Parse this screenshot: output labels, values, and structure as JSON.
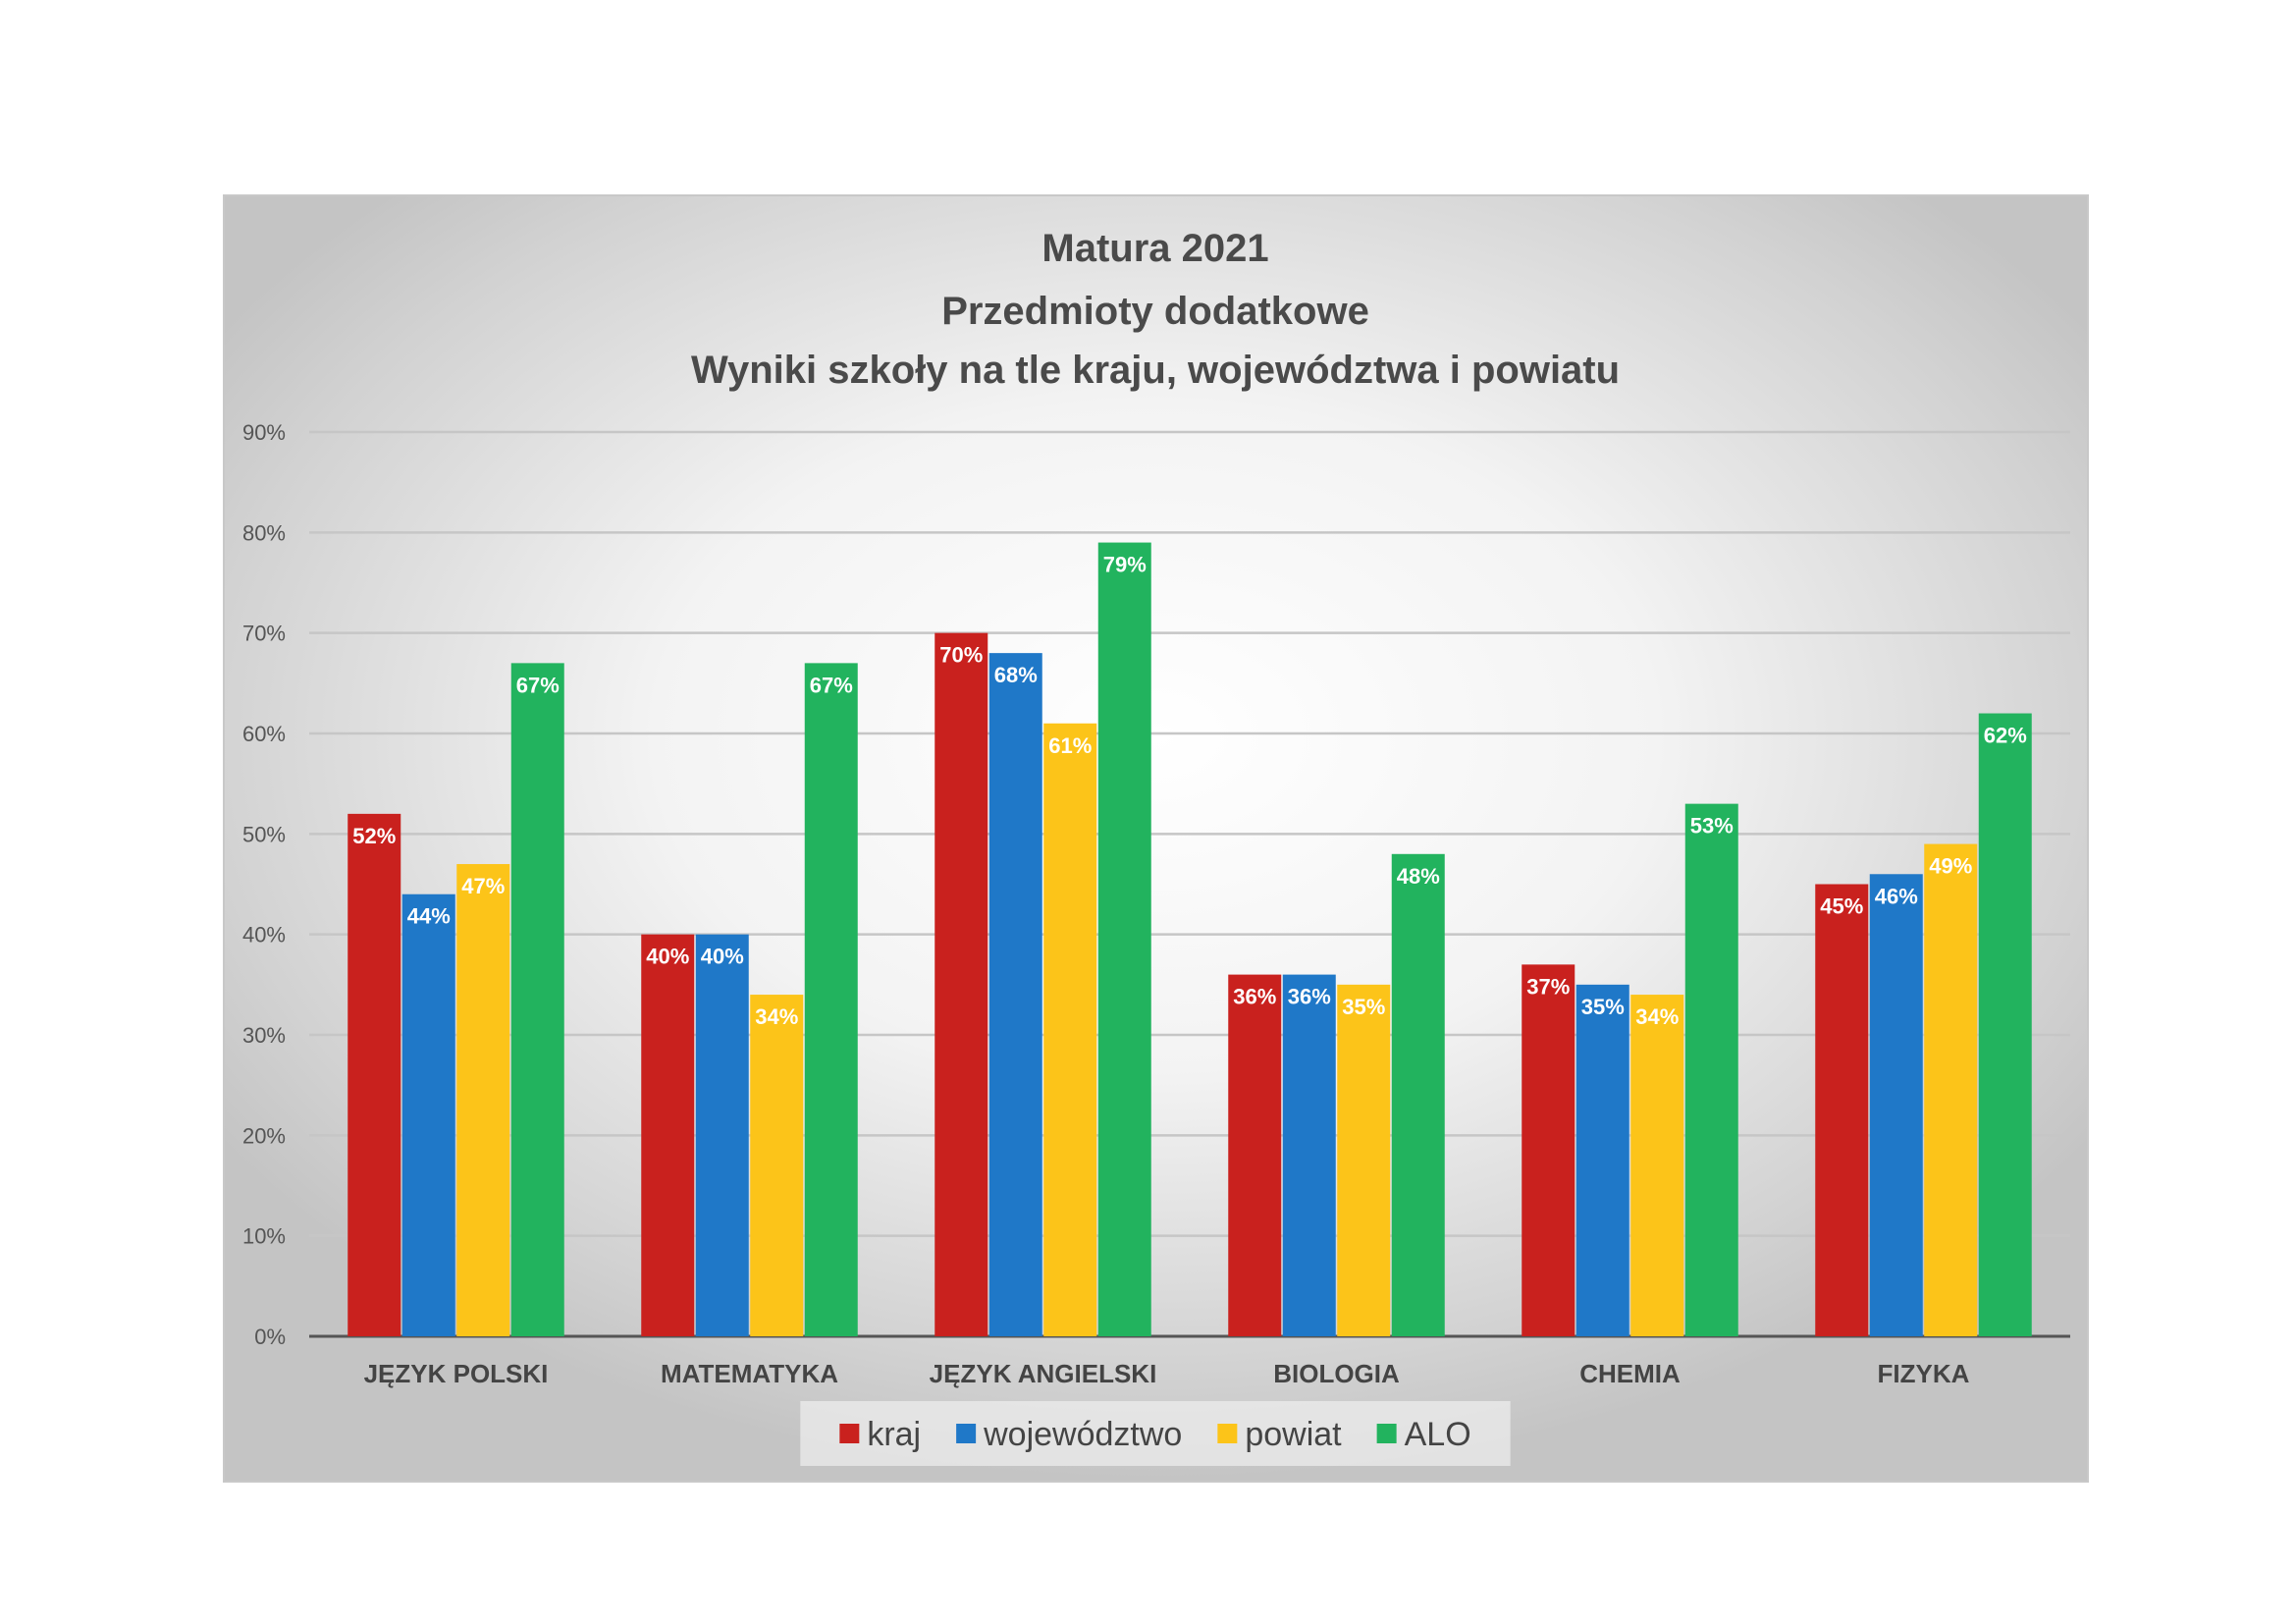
{
  "chart_data": {
    "type": "bar",
    "title": [
      "Matura 2021",
      "Przedmioty dodatkowe",
      "Wyniki szkoły na tle kraju, województwa i powiatu"
    ],
    "categories": [
      "JĘZYK POLSKI",
      "MATEMATYKA",
      "JĘZYK ANGIELSKI",
      "BIOLOGIA",
      "CHEMIA",
      "FIZYKA"
    ],
    "series": [
      {
        "name": "kraj",
        "color": "#c9211e",
        "values": [
          52,
          40,
          70,
          36,
          37,
          45
        ]
      },
      {
        "name": "województwo",
        "color": "#1f78c8",
        "values": [
          44,
          40,
          68,
          36,
          35,
          46
        ]
      },
      {
        "name": "powiat",
        "color": "#fcc419",
        "values": [
          47,
          34,
          61,
          35,
          34,
          49
        ]
      },
      {
        "name": "ALO",
        "color": "#22b35e",
        "values": [
          67,
          67,
          79,
          48,
          53,
          62
        ]
      }
    ],
    "value_suffix": "%",
    "ylim": [
      0,
      90
    ],
    "yticks": [
      "0%",
      "10%",
      "20%",
      "30%",
      "40%",
      "50%",
      "60%",
      "70%",
      "80%",
      "90%"
    ],
    "grid": true,
    "legend_position": "bottom"
  }
}
